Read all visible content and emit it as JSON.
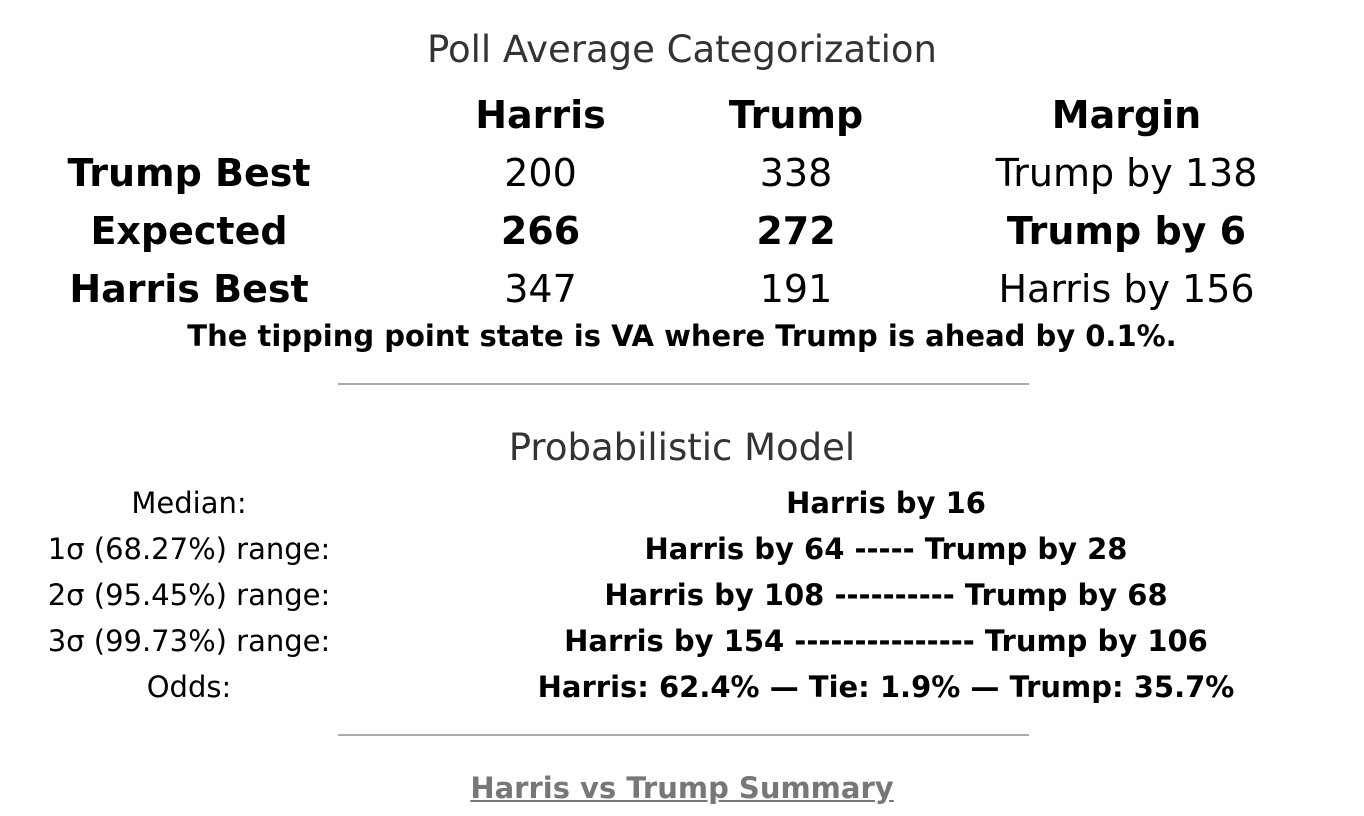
{
  "poll_average": {
    "title": "Poll Average Categorization",
    "headers": [
      "",
      "Harris",
      "Trump",
      "Margin"
    ],
    "rows": [
      {
        "label": "Trump Best",
        "harris": "200",
        "trump": "338",
        "margin": "Trump by 138"
      },
      {
        "label": "Expected",
        "harris": "266",
        "trump": "272",
        "margin": "Trump by 6"
      },
      {
        "label": "Harris Best",
        "harris": "347",
        "trump": "191",
        "margin": "Harris by 156"
      }
    ],
    "tipping_point": "The tipping point state is VA where Trump is ahead by 0.1%."
  },
  "probabilistic_model": {
    "title": "Probabilistic Model",
    "rows": [
      {
        "label": "Median:",
        "value": "Harris by 16"
      },
      {
        "label": "1σ (68.27%) range:",
        "value": "Harris by 64 ----- Trump by 28"
      },
      {
        "label": "2σ (95.45%) range:",
        "value": "Harris by 108 ---------- Trump by 68"
      },
      {
        "label": "3σ (99.73%) range:",
        "value": "Harris by 154 --------------- Trump by 106"
      },
      {
        "label": "Odds:",
        "value": "Harris: 62.4% — Tie: 1.9% — Trump: 35.7%"
      }
    ]
  },
  "summary_link": {
    "label": "Harris vs Trump Summary"
  },
  "colors": {
    "title": "#333333",
    "divider": "#aaaaaa",
    "link": "#777777"
  }
}
